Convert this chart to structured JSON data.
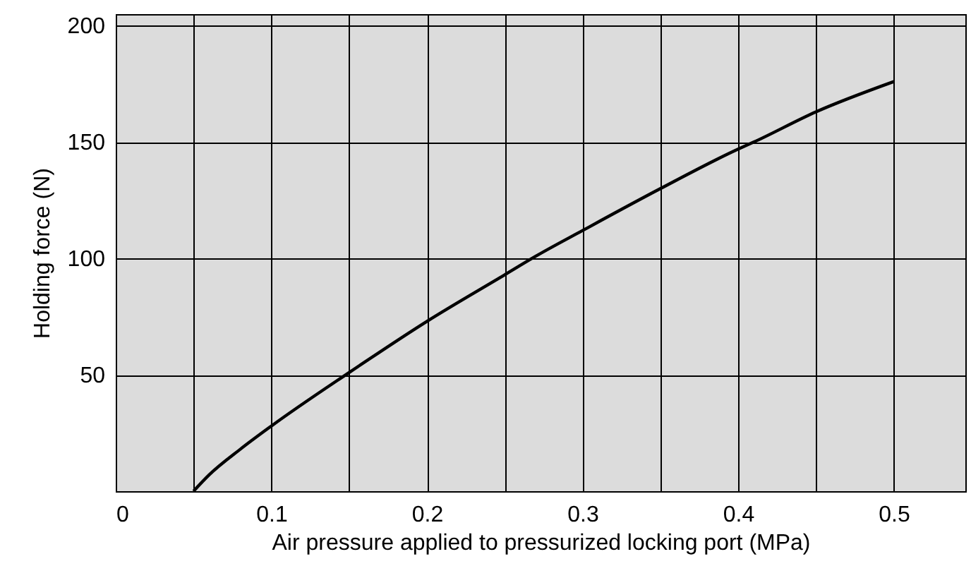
{
  "chart_data": {
    "type": "line",
    "xlabel": "Air pressure applied to pressurized locking port (MPa)",
    "ylabel": "Holding force (N)",
    "x": [
      0.05,
      0.06,
      0.08,
      0.1,
      0.15,
      0.2,
      0.25,
      0.27,
      0.3,
      0.35,
      0.4,
      0.41,
      0.45,
      0.5
    ],
    "series": [
      {
        "color": "#000000",
        "values": [
          0,
          7,
          18,
          28,
          51,
          73,
          93,
          101,
          112,
          130,
          147,
          150,
          163,
          176
        ]
      }
    ],
    "xlim": [
      0,
      0.546
    ],
    "ylim": [
      0,
      205
    ],
    "xticks": [
      0,
      {
        "value": 0.05,
        "label": null
      },
      0.1,
      {
        "value": 0.15,
        "label": null
      },
      0.2,
      {
        "value": 0.25,
        "label": null
      },
      0.3,
      {
        "value": 0.35,
        "label": null
      },
      0.4,
      {
        "value": 0.45,
        "label": null
      },
      0.5
    ],
    "yticks": [
      50,
      100,
      150,
      200
    ],
    "grid": true,
    "marker": "none",
    "line_style": "solid"
  }
}
